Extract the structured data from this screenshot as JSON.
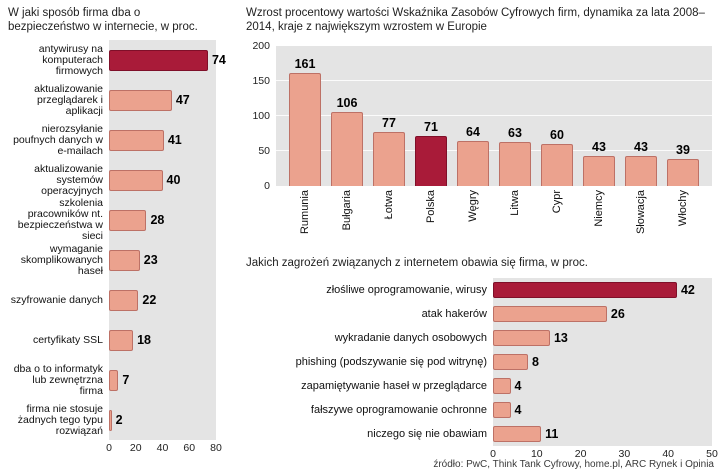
{
  "page": {
    "source": "źródło: PwC, Think Tank Cyfrowy, home.pl, ARC Rynek i Opinia"
  },
  "colors": {
    "bar": "#eba28e",
    "bar_border": "#bd7166",
    "highlight": "#a91b39",
    "plot_background": "#e4e4e4",
    "text": "#1a1a1a"
  },
  "chart_data": [
    {
      "type": "bar",
      "orientation": "horizontal",
      "title": "W jaki sposób firma dba o bezpieczeństwo w internecie, w proc.",
      "categories": [
        "antywirusy na komputerach firmowych",
        "aktualizowanie przeglądarek i aplikacji",
        "nierozsyłanie poufnych danych w e-mailach",
        "aktualizowanie systemów operacyjnych",
        "szkolenia pracowników nt. bezpieczeństwa w sieci",
        "wymaganie skomplikowanych haseł",
        "szyfrowanie danych",
        "certyfikaty SSL",
        "dba o to informatyk lub zewnętrzna firma",
        "firma nie stosuje żadnych tego typu rozwiązań"
      ],
      "values": [
        74,
        47,
        41,
        40,
        28,
        23,
        22,
        18,
        7,
        2
      ],
      "highlight_index": 0,
      "xlim": [
        0,
        80
      ],
      "xticks": [
        0,
        20,
        40,
        60,
        80
      ],
      "grid": false,
      "legend": "none"
    },
    {
      "type": "bar",
      "orientation": "vertical",
      "title": "Wzrost procentowy wartości Wskaźnika Zasobów Cyfrowych firm, dynamika za lata 2008–2014, kraje z największym wzrostem w Europie",
      "categories": [
        "Rumunia",
        "Bułgaria",
        "Łotwa",
        "Polska",
        "Węgry",
        "Litwa",
        "Cypr",
        "Niemcy",
        "Słowacja",
        "Włochy"
      ],
      "values": [
        161,
        106,
        77,
        71,
        64,
        63,
        60,
        43,
        43,
        39
      ],
      "highlight_index": 3,
      "ylim": [
        0,
        200
      ],
      "yticks": [
        0,
        50,
        100,
        150,
        200
      ],
      "grid": true,
      "legend": "none"
    },
    {
      "type": "bar",
      "orientation": "horizontal",
      "title": "Jakich zagrożeń związanych z internetem obawia się firma, w proc.",
      "categories": [
        "złośliwe oprogramowanie, wirusy",
        "atak hakerów",
        "wykradanie danych osobowych",
        "phishing (podszywanie się pod witrynę)",
        "zapamiętywanie haseł w przeglądarce",
        "fałszywe oprogramowanie ochronne",
        "niczego się nie obawiam"
      ],
      "values": [
        42,
        26,
        13,
        8,
        4,
        4,
        11
      ],
      "highlight_index": 0,
      "xlim": [
        0,
        50
      ],
      "xticks": [
        0,
        10,
        20,
        30,
        40,
        50
      ],
      "grid": false,
      "legend": "none"
    }
  ]
}
